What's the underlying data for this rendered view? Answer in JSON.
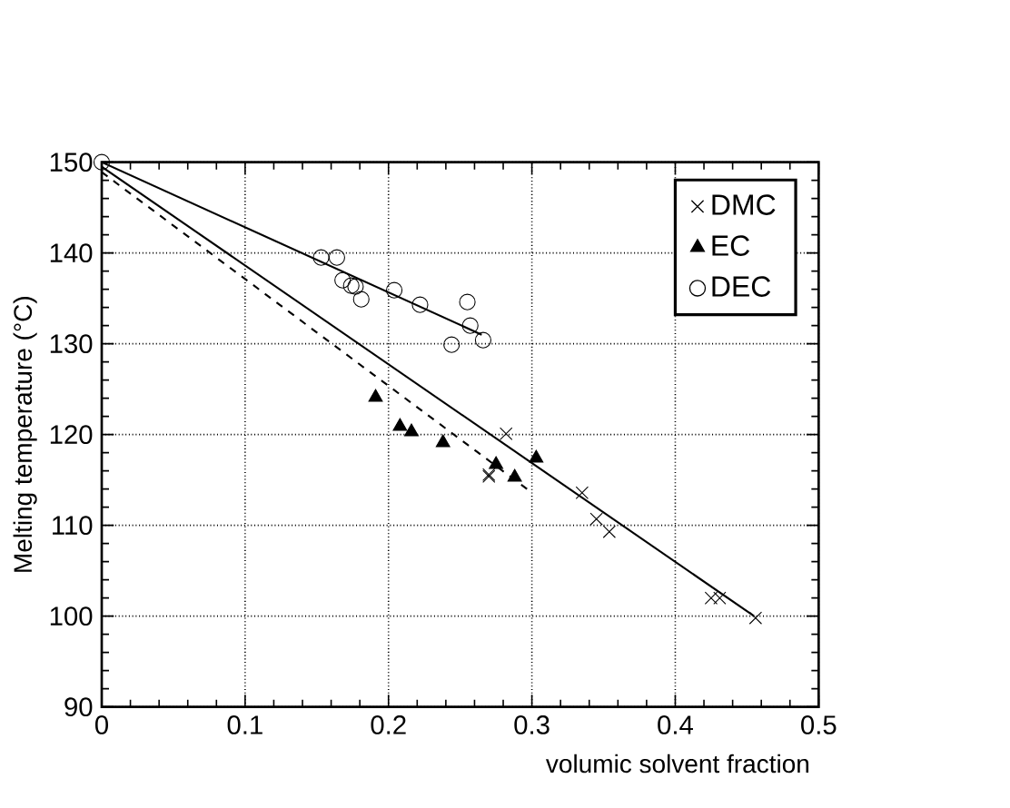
{
  "chart_data": {
    "type": "scatter",
    "xlabel": "volumic solvent fraction",
    "ylabel": "Melting temperature (°C)",
    "xlim": [
      0,
      0.5
    ],
    "xticks": [
      0,
      0.1,
      0.2,
      0.3,
      0.4,
      0.5
    ],
    "ylim": [
      90,
      150
    ],
    "yticks": [
      90,
      100,
      110,
      120,
      130,
      140,
      150
    ],
    "grid": true,
    "legend": "top right",
    "series": [
      {
        "name": "DMC",
        "color": "#000000",
        "marker": "cross",
        "x": [
          0.27,
          0.27,
          0.282,
          0.335,
          0.345,
          0.354,
          0.425,
          0.431,
          0.456
        ],
        "values": [
          115.4,
          115.6,
          120.1,
          113.6,
          110.7,
          109.3,
          102.0,
          102.0,
          99.8
        ]
      },
      {
        "name": "EC",
        "color": "#000000",
        "marker": "triangle",
        "x": [
          0.191,
          0.208,
          0.216,
          0.238,
          0.275,
          0.288,
          0.303
        ],
        "values": [
          124.1,
          120.9,
          120.3,
          119.1,
          116.7,
          115.3,
          117.4
        ]
      },
      {
        "name": "DEC",
        "color": "#000000",
        "marker": "circle",
        "x": [
          0,
          0.153,
          0.164,
          0.168,
          0.174,
          0.177,
          0.181,
          0.204,
          0.222,
          0.244,
          0.255,
          0.257,
          0.266
        ],
        "values": [
          150,
          139.5,
          139.5,
          137.0,
          136.4,
          136.3,
          134.9,
          135.9,
          134.3,
          129.9,
          134.6,
          132.0,
          130.4
        ]
      },
      {
        "type": "line",
        "color": "#000000",
        "line_style": "solid",
        "x": [
          0,
          0.455
        ],
        "values": [
          149.5,
          100
        ]
      },
      {
        "type": "line",
        "color": "#000000",
        "line_style": "dashed",
        "x": [
          0,
          0.3
        ],
        "values": [
          148.9,
          113.6
        ]
      },
      {
        "type": "line",
        "color": "#000000",
        "line_style": "solid",
        "x": [
          0,
          0.265
        ],
        "values": [
          150,
          131
        ]
      }
    ]
  }
}
